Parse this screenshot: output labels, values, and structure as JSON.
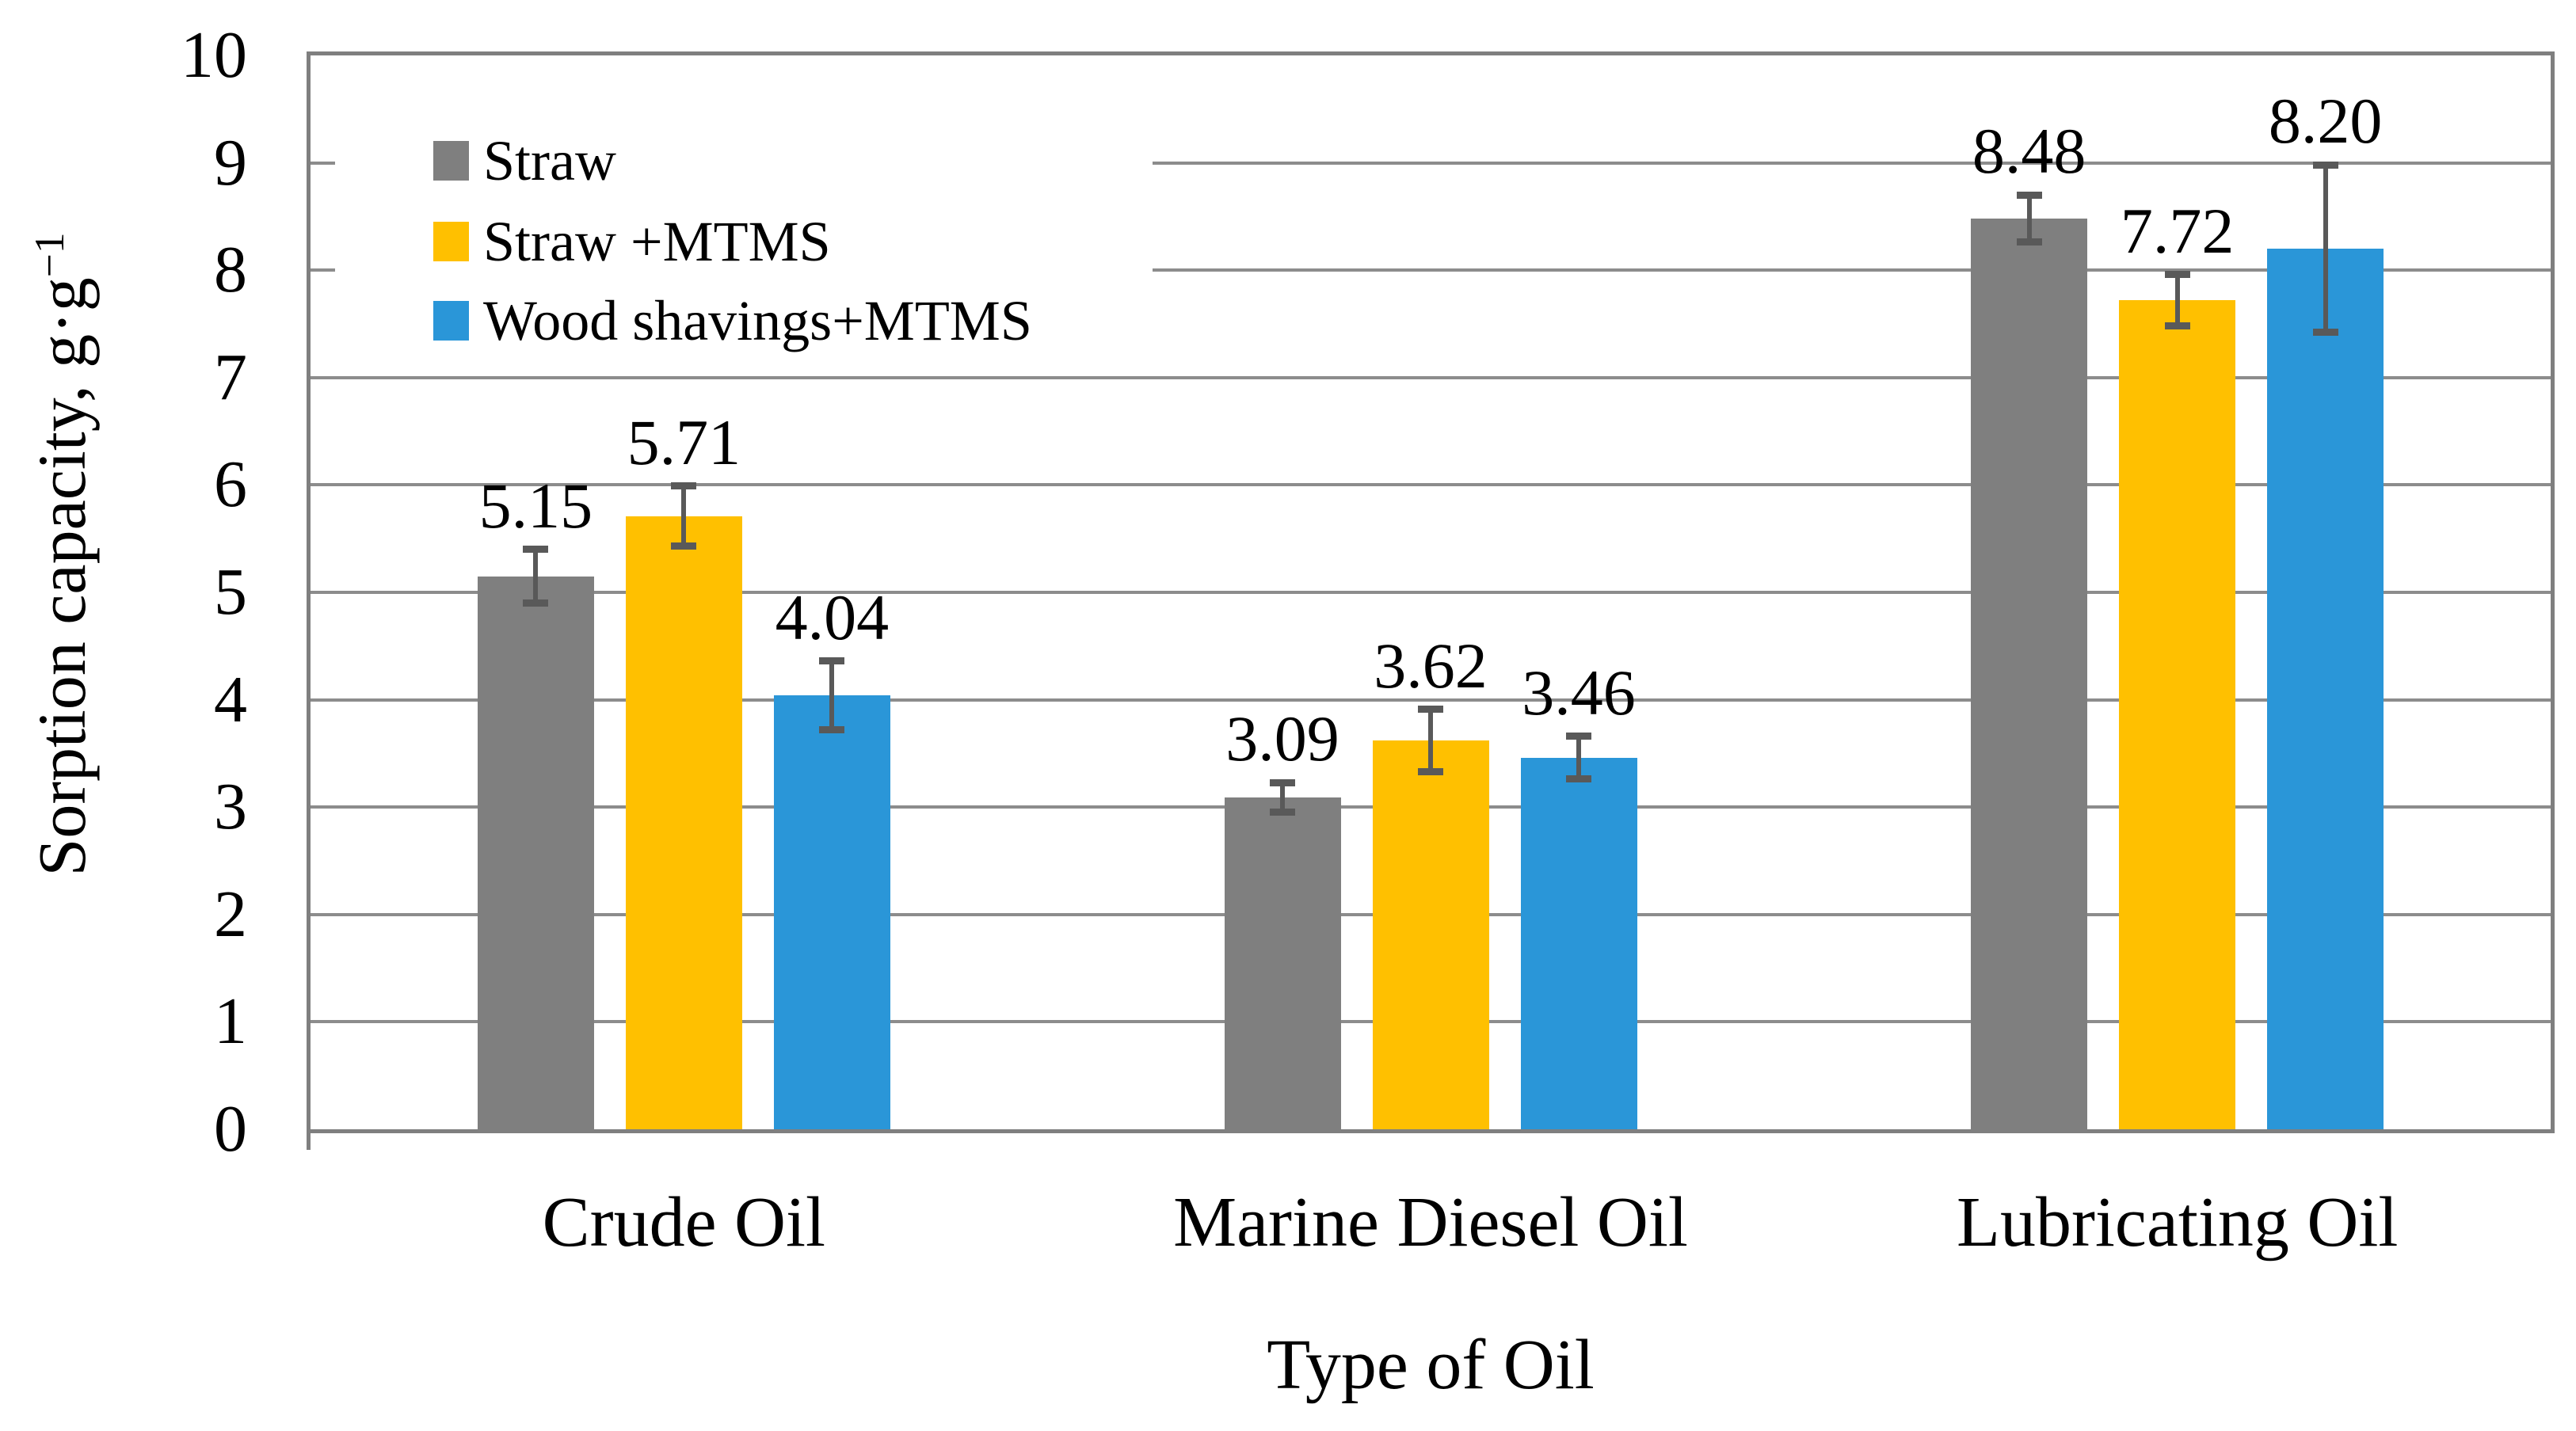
{
  "chart_data": {
    "type": "bar",
    "title": "",
    "xlabel": "Type of Oil",
    "ylabel": "Sorption capacity, g·g⁻¹",
    "ylabel_main": "Sorption capacity, g·g",
    "ylabel_sup": "−1",
    "ylim": [
      0,
      10
    ],
    "ytick_step": 1,
    "yticks": [
      "0",
      "1",
      "2",
      "3",
      "4",
      "5",
      "6",
      "7",
      "8",
      "9",
      "10"
    ],
    "grid": true,
    "legend_position": "top-left-inside",
    "categories": [
      "Crude Oil",
      "Marine Diesel Oil",
      "Lubricating Oil"
    ],
    "series": [
      {
        "name": "Straw",
        "color": "#7F7F7F",
        "values": [
          5.15,
          3.09,
          8.48
        ],
        "errors": [
          0.25,
          0.14,
          0.22
        ]
      },
      {
        "name": "Straw +MTMS",
        "color": "#FFC000",
        "values": [
          5.71,
          3.62,
          7.72
        ],
        "errors": [
          0.28,
          0.29,
          0.24
        ]
      },
      {
        "name": "Wood shavings+MTMS",
        "color": "#2A96D8",
        "values": [
          4.04,
          3.46,
          8.2
        ],
        "errors": [
          0.32,
          0.2,
          0.78
        ]
      }
    ],
    "value_label_decimals": 2
  },
  "style": {
    "axis_color": "#7F7F7F",
    "grid_color": "#8C8C8C",
    "error_bar_color": "#595959",
    "text_color": "#000000",
    "background": "#FFFFFF"
  }
}
